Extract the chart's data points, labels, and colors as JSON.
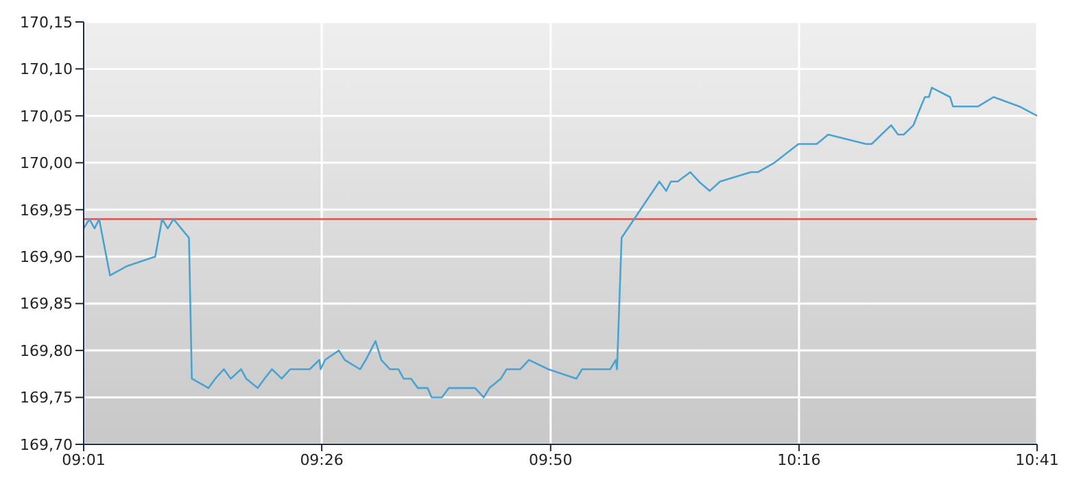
{
  "chart_data": {
    "type": "line",
    "x": [
      9.017,
      9.027,
      9.036,
      9.044,
      9.063,
      9.093,
      9.108,
      9.142,
      9.154,
      9.164,
      9.174,
      9.201,
      9.206,
      9.235,
      9.247,
      9.262,
      9.274,
      9.292,
      9.301,
      9.321,
      9.333,
      9.346,
      9.363,
      9.378,
      9.412,
      9.429,
      9.431,
      9.439,
      9.463,
      9.473,
      9.5,
      9.51,
      9.527,
      9.537,
      9.552,
      9.567,
      9.576,
      9.589,
      9.601,
      9.618,
      9.625,
      9.643,
      9.655,
      9.701,
      9.716,
      9.726,
      9.746,
      9.756,
      9.78,
      9.795,
      9.829,
      9.878,
      9.888,
      9.937,
      9.947,
      9.949,
      9.957,
      10.023,
      10.035,
      10.043,
      10.055,
      10.077,
      10.092,
      10.111,
      10.129,
      10.183,
      10.195,
      10.224,
      10.266,
      10.298,
      10.318,
      10.384,
      10.394,
      10.411,
      10.428,
      10.44,
      10.45,
      10.467,
      10.48,
      10.487,
      10.494,
      10.499,
      10.531,
      10.536,
      10.58,
      10.607,
      10.652,
      10.683
    ],
    "series": [
      {
        "color": "#4aa3cf",
        "values": [
          169.93,
          169.94,
          169.93,
          169.94,
          169.88,
          169.89,
          169.893,
          169.9,
          169.94,
          169.93,
          169.94,
          169.92,
          169.77,
          169.76,
          169.77,
          169.78,
          169.77,
          169.78,
          169.77,
          169.76,
          169.77,
          169.78,
          169.77,
          169.78,
          169.78,
          169.79,
          169.78,
          169.79,
          169.8,
          169.79,
          169.78,
          169.79,
          169.81,
          169.79,
          169.78,
          169.78,
          169.77,
          169.77,
          169.76,
          169.76,
          169.75,
          169.75,
          169.76,
          169.76,
          169.75,
          169.76,
          169.77,
          169.78,
          169.78,
          169.79,
          169.78,
          169.77,
          169.78,
          169.78,
          169.79,
          169.78,
          169.92,
          169.98,
          169.97,
          169.98,
          169.98,
          169.99,
          169.98,
          169.97,
          169.98,
          169.99,
          169.99,
          170.0,
          170.02,
          170.02,
          170.03,
          170.02,
          170.02,
          170.03,
          170.04,
          170.03,
          170.03,
          170.04,
          170.06,
          170.07,
          170.07,
          170.08,
          170.07,
          170.06,
          170.06,
          170.07,
          170.06,
          170.05
        ]
      }
    ],
    "xlim": [
      9.017,
      10.683
    ],
    "xticks": [
      {
        "value": 9.017,
        "label": "09:01"
      },
      {
        "value": 9.433,
        "label": "09:26"
      },
      {
        "value": 9.833,
        "label": "09:50"
      },
      {
        "value": 10.267,
        "label": "10:16"
      },
      {
        "value": 10.683,
        "label": "10:41"
      }
    ],
    "ylim": [
      169.7,
      170.15
    ],
    "yticks": [
      {
        "value": 169.7,
        "label": "169,70"
      },
      {
        "value": 169.75,
        "label": "169,75"
      },
      {
        "value": 169.8,
        "label": "169,80"
      },
      {
        "value": 169.85,
        "label": "169,85"
      },
      {
        "value": 169.9,
        "label": "169,90"
      },
      {
        "value": 169.95,
        "label": "169,95"
      },
      {
        "value": 170.0,
        "label": "170,00"
      },
      {
        "value": 170.05,
        "label": "170,05"
      },
      {
        "value": 170.1,
        "label": "170,10"
      },
      {
        "value": 170.15,
        "label": "170,15"
      }
    ],
    "ref_lines": [
      {
        "axis": "y",
        "value": 169.94,
        "color": "#e05050"
      }
    ],
    "grid": true,
    "marker": "none",
    "line_style": "solid"
  }
}
